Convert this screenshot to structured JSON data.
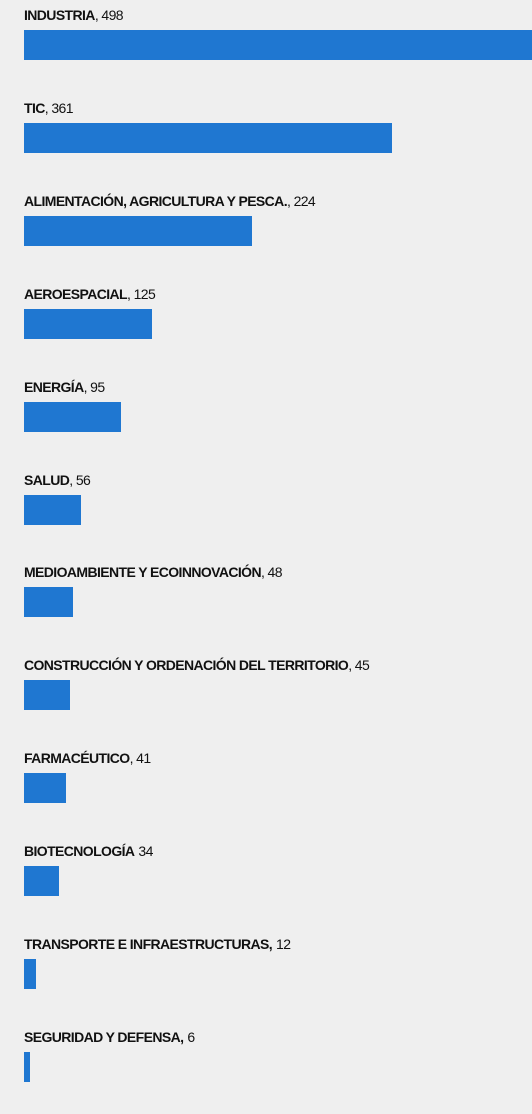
{
  "chart_data": {
    "type": "bar",
    "orientation": "horizontal",
    "color": "#1f77d1",
    "categories": [
      "INDUSTRIA",
      "TIC",
      "ALIMENTACIÓN, AGRICULTURA Y PESCA.",
      "AEROESPACIAL",
      "ENERGÍA",
      "SALUD",
      "MEDIOAMBIENTE Y ECOINNOVACIÓN",
      "CONSTRUCCIÓN Y ORDENACIÓN DEL TERRITORIO",
      "FARMACÉUTICO",
      "BIOTECNOLOGÍA",
      "TRANSPORTE E INFRAESTRUCTURAS,",
      "SEGURIDAD Y DEFENSA,"
    ],
    "values": [
      498,
      361,
      224,
      125,
      95,
      56,
      48,
      45,
      41,
      34,
      12,
      6
    ],
    "value_labels": [
      ", 498",
      ", 361",
      ", 224",
      ", 125",
      ", 95",
      ", 56",
      ", 48",
      ", 45",
      ", 41",
      "34",
      "12",
      "6"
    ]
  }
}
